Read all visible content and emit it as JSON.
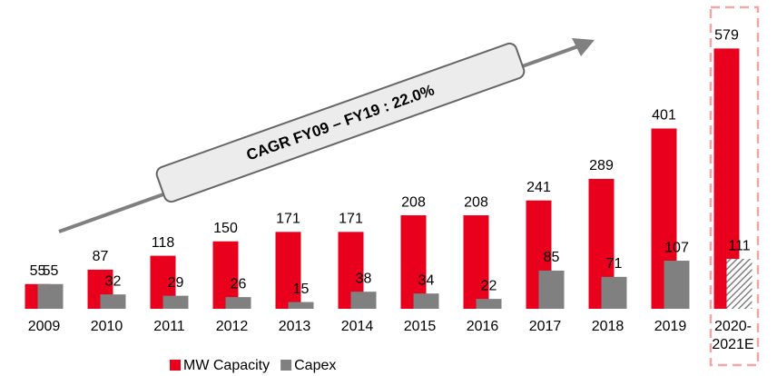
{
  "chart_data": {
    "type": "bar",
    "categories": [
      "2009",
      "2010",
      "2011",
      "2012",
      "2013",
      "2014",
      "2015",
      "2016",
      "2017",
      "2018",
      "2019",
      "2020-2021E"
    ],
    "series": [
      {
        "name": "MW Capacity",
        "color": "#e8001c",
        "values": [
          55,
          87,
          118,
          150,
          171,
          171,
          208,
          208,
          241,
          289,
          401,
          579
        ]
      },
      {
        "name": "Capex",
        "color": "#808080",
        "values": [
          55,
          32,
          29,
          26,
          15,
          38,
          34,
          22,
          85,
          71,
          107,
          111
        ]
      }
    ],
    "ylim": [
      0,
      600
    ],
    "annotation": "CAGR FY09 – FY19 : 22.0%",
    "legend": "bottom"
  }
}
